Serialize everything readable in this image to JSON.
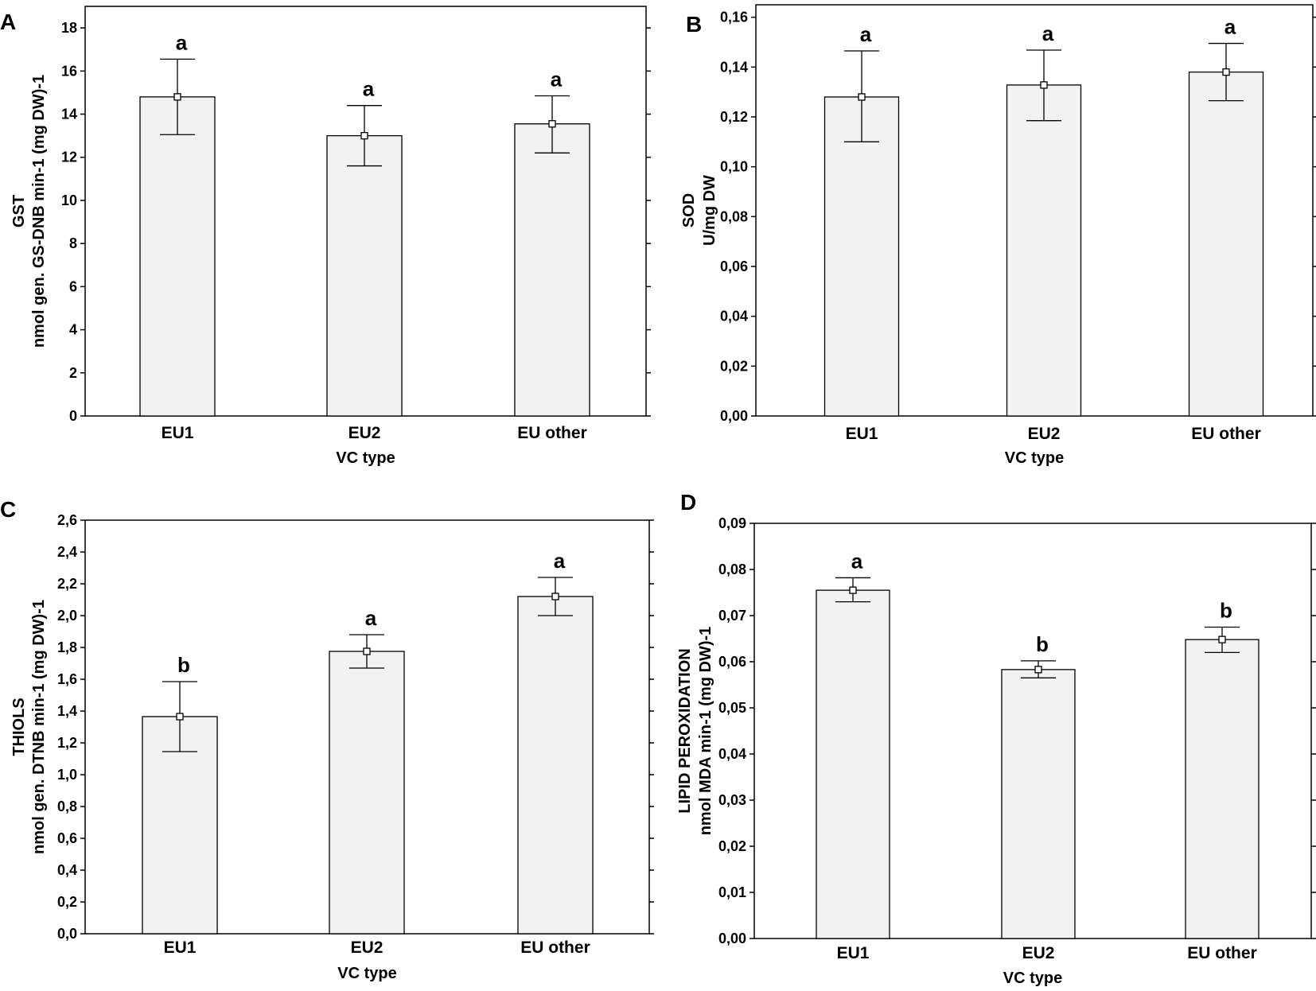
{
  "chart_data": [
    {
      "type": "bar",
      "panel": "A",
      "categories": [
        "EU1",
        "EU2",
        "EU other"
      ],
      "values": [
        14.8,
        13.0,
        13.55
      ],
      "error_low": [
        13.05,
        11.6,
        12.2
      ],
      "error_high": [
        16.55,
        14.4,
        14.85
      ],
      "significance": [
        "a",
        "a",
        "a"
      ],
      "xlabel": "VC type",
      "ylabel": [
        "GST",
        "nmol gen. GS-DNB min-1 (mg DW)-1"
      ],
      "ylim": [
        0,
        19
      ],
      "yticks": [
        0,
        2,
        4,
        6,
        8,
        10,
        12,
        14,
        16,
        18
      ],
      "ytick_labels": [
        "0",
        "2",
        "4",
        "6",
        "8",
        "10",
        "12",
        "14",
        "16",
        "18"
      ]
    },
    {
      "type": "bar",
      "panel": "B",
      "categories": [
        "EU1",
        "EU2",
        "EU other"
      ],
      "values": [
        0.128,
        0.1328,
        0.138
      ],
      "error_low": [
        0.11,
        0.1185,
        0.1265
      ],
      "error_high": [
        0.1465,
        0.1468,
        0.1495
      ],
      "significance": [
        "a",
        "a",
        "a"
      ],
      "xlabel": "VC type",
      "ylabel": [
        "SOD",
        "U/mg DW"
      ],
      "ylim": [
        0,
        0.165
      ],
      "yticks": [
        0,
        0.02,
        0.04,
        0.06,
        0.08,
        0.1,
        0.12,
        0.14,
        0.16
      ],
      "ytick_labels": [
        "0,00",
        "0,02",
        "0,04",
        "0,06",
        "0,08",
        "0,10",
        "0,12",
        "0,14",
        "0,16"
      ]
    },
    {
      "type": "bar",
      "panel": "C",
      "categories": [
        "EU1",
        "EU2",
        "EU other"
      ],
      "values": [
        1.365,
        1.775,
        2.12
      ],
      "error_low": [
        1.145,
        1.67,
        2.0
      ],
      "error_high": [
        1.585,
        1.88,
        2.24
      ],
      "significance": [
        "b",
        "a",
        "a"
      ],
      "xlabel": "VC type",
      "ylabel": [
        "THIOLS",
        "nmol gen. DTNB min-1 (mg DW)-1"
      ],
      "ylim": [
        0,
        2.6
      ],
      "yticks": [
        0,
        0.2,
        0.4,
        0.6,
        0.8,
        1.0,
        1.2,
        1.4,
        1.6,
        1.8,
        2.0,
        2.2,
        2.4,
        2.6
      ],
      "ytick_labels": [
        "0,0",
        "0,2",
        "0,4",
        "0,6",
        "0,8",
        "1,0",
        "1,2",
        "1,4",
        "1,6",
        "1,8",
        "2,0",
        "2,2",
        "2,4",
        "2,6"
      ]
    },
    {
      "type": "bar",
      "panel": "D",
      "categories": [
        "EU1",
        "EU2",
        "EU other"
      ],
      "values": [
        0.0755,
        0.0583,
        0.0648
      ],
      "error_low": [
        0.073,
        0.0565,
        0.062
      ],
      "error_high": [
        0.0782,
        0.0602,
        0.0675
      ],
      "significance": [
        "a",
        "b",
        "b"
      ],
      "xlabel": "VC type",
      "ylabel": [
        "LIPID PEROXIDATION",
        "nmol MDA min-1 (mg DW)-1"
      ],
      "ylim": [
        0,
        0.09
      ],
      "yticks": [
        0,
        0.01,
        0.02,
        0.03,
        0.04,
        0.05,
        0.06,
        0.07,
        0.08,
        0.09
      ],
      "ytick_labels": [
        "0,00",
        "0,01",
        "0,02",
        "0,03",
        "0,04",
        "0,05",
        "0,06",
        "0,07",
        "0,08",
        "0,09"
      ]
    }
  ],
  "colors": {
    "bar_fill": "#f2f2f2",
    "stroke": "#000000",
    "background": "#ffffff"
  }
}
